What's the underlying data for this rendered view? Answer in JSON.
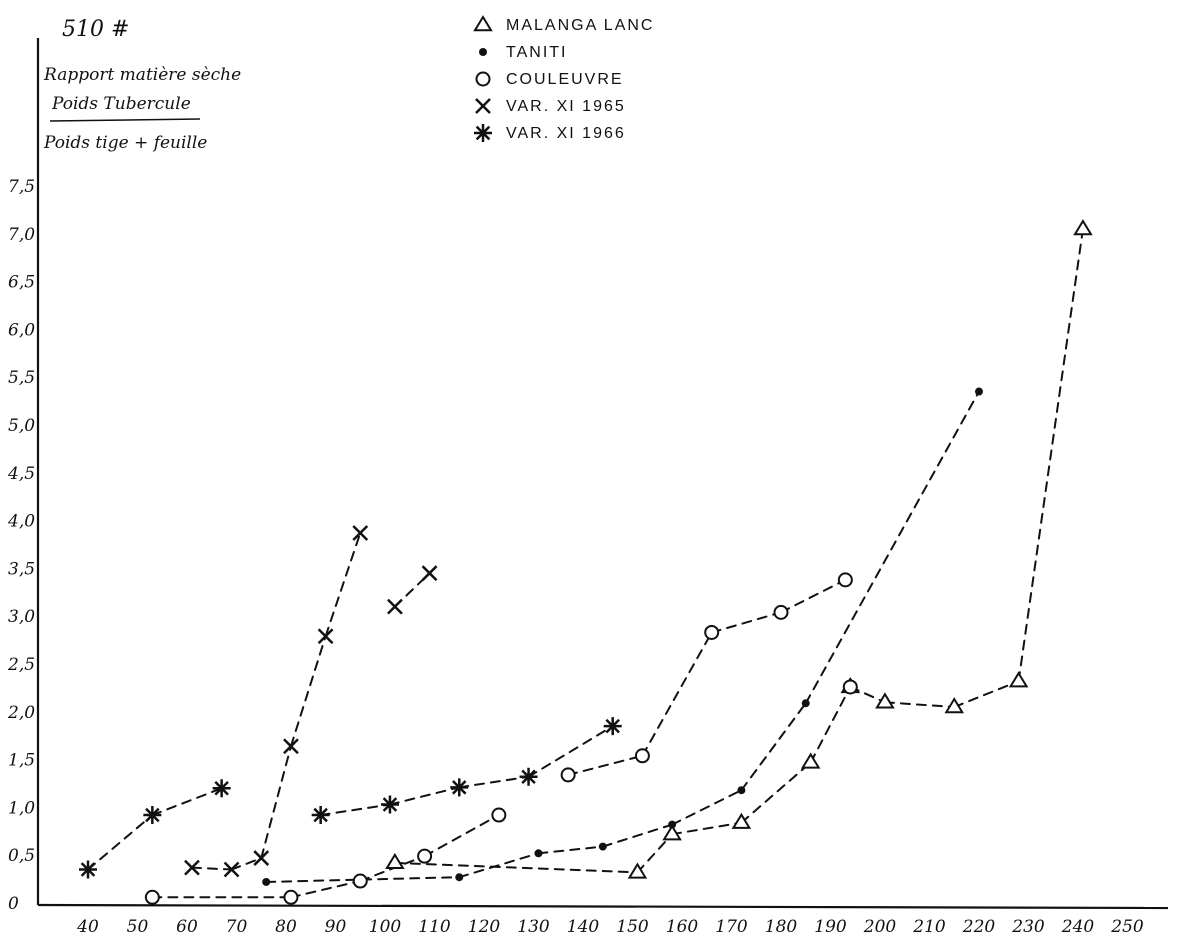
{
  "chart_data": {
    "type": "line",
    "page_mark": "510 #",
    "ylabel_lines": [
      "Rapport matière sèche",
      "Poids Tubercule",
      "Poids tige + feuille"
    ],
    "xlim": [
      35,
      255
    ],
    "ylim": [
      0,
      8.0
    ],
    "grid": false,
    "legend_position": "top-center",
    "x_ticks": [
      "40",
      "50",
      "60",
      "70",
      "80",
      "90",
      "100",
      "110",
      "120",
      "130",
      "140",
      "150",
      "160",
      "170",
      "180",
      "190",
      "200",
      "210",
      "220",
      "230",
      "240",
      "250"
    ],
    "y_ticks": [
      {
        "label": "0",
        "value": 0
      },
      {
        "label": "0,5",
        "value": 0.5
      },
      {
        "label": "1,0",
        "value": 1.0
      },
      {
        "label": "1,5",
        "value": 1.5
      },
      {
        "label": "2,0",
        "value": 2.0
      },
      {
        "label": "2,5",
        "value": 2.5
      },
      {
        "label": "3,0",
        "value": 3.0
      },
      {
        "label": "3,5",
        "value": 3.5
      },
      {
        "label": "4,0",
        "value": 4.0
      },
      {
        "label": "4,5",
        "value": 4.5
      },
      {
        "label": "5,0",
        "value": 5.0
      },
      {
        "label": "5,5",
        "value": 5.5
      },
      {
        "label": "6,0",
        "value": 6.0
      },
      {
        "label": "6,5",
        "value": 6.5
      },
      {
        "label": "7,0",
        "value": 7.0
      },
      {
        "label": "7,5",
        "value": 7.5
      }
    ],
    "series": [
      {
        "name": "MALANGA LANC",
        "marker": "triangle",
        "points": [
          [
            102,
            0.42
          ],
          [
            151,
            0.32
          ],
          [
            158,
            0.72
          ],
          [
            172,
            0.84
          ],
          [
            186,
            1.47
          ],
          [
            194,
            2.26
          ],
          [
            201,
            2.1
          ],
          [
            215,
            2.05
          ],
          [
            228,
            2.32
          ],
          [
            241,
            7.05
          ]
        ]
      },
      {
        "name": "TANITI",
        "marker": "dot",
        "points": [
          [
            76,
            0.22
          ],
          [
            115,
            0.27
          ],
          [
            131,
            0.52
          ],
          [
            144,
            0.59
          ],
          [
            158,
            0.82
          ],
          [
            172,
            1.18
          ],
          [
            185,
            2.09
          ],
          [
            220,
            5.35
          ]
        ]
      },
      {
        "name": "COULEUVRE",
        "marker": "circle",
        "points": [
          [
            53,
            0.06
          ],
          [
            81,
            0.06
          ],
          [
            95,
            0.23
          ],
          [
            108,
            0.49
          ],
          [
            123,
            0.92
          ],
          [
            137,
            1.34
          ],
          [
            152,
            1.54
          ],
          [
            166,
            2.83
          ],
          [
            180,
            3.04
          ],
          [
            193,
            3.38
          ],
          [
            194,
            2.26
          ]
        ]
      },
      {
        "name": "VAR. XI 1965",
        "marker": "x",
        "points": [
          [
            61,
            0.37
          ],
          [
            69,
            0.35
          ],
          [
            75,
            0.47
          ],
          [
            81,
            1.64
          ],
          [
            88,
            2.79
          ],
          [
            95,
            3.87
          ],
          [
            102,
            3.1
          ],
          [
            109,
            3.45
          ]
        ]
      },
      {
        "name": "VAR. XI 1966",
        "marker": "asterisk",
        "points": [
          [
            40,
            0.35
          ],
          [
            53,
            0.92
          ],
          [
            67,
            1.2
          ],
          [
            87,
            0.92
          ],
          [
            101,
            1.03
          ],
          [
            115,
            1.21
          ],
          [
            129,
            1.32
          ],
          [
            146,
            1.85
          ]
        ]
      }
    ],
    "connections": [
      {
        "series": "MALANGA LANC",
        "segments": [
          [
            0,
            1
          ],
          [
            1,
            2
          ],
          [
            2,
            3
          ],
          [
            3,
            4
          ],
          [
            4,
            5
          ],
          [
            5,
            6
          ],
          [
            6,
            7
          ],
          [
            7,
            8
          ],
          [
            8,
            9
          ]
        ]
      },
      {
        "series": "TANITI",
        "segments": [
          [
            0,
            1
          ],
          [
            1,
            2
          ],
          [
            2,
            3
          ],
          [
            3,
            4
          ],
          [
            4,
            5
          ],
          [
            5,
            6
          ],
          [
            6,
            7
          ]
        ]
      },
      {
        "series": "COULEUVRE",
        "segments": [
          [
            0,
            1
          ],
          [
            1,
            2
          ],
          [
            2,
            3
          ],
          [
            3,
            4
          ],
          [
            5,
            6
          ],
          [
            6,
            7
          ],
          [
            7,
            8
          ],
          [
            8,
            9
          ]
        ]
      },
      {
        "series": "VAR. XI 1965",
        "segments": [
          [
            0,
            1
          ],
          [
            1,
            2
          ],
          [
            2,
            3
          ],
          [
            3,
            4
          ],
          [
            4,
            5
          ],
          [
            6,
            7
          ]
        ]
      },
      {
        "series": "VAR. XI 1966",
        "segments": [
          [
            0,
            1
          ],
          [
            1,
            2
          ],
          [
            3,
            4
          ],
          [
            4,
            5
          ],
          [
            5,
            6
          ],
          [
            6,
            7
          ]
        ]
      }
    ],
    "legend": [
      {
        "marker": "triangle",
        "label": "MALANGA   LANC"
      },
      {
        "marker": "dot",
        "label": "TANITI"
      },
      {
        "marker": "circle",
        "label": "COULEUVRE"
      },
      {
        "marker": "x",
        "label": "VAR. XI  1965"
      },
      {
        "marker": "asterisk",
        "label": "VAR. XI  1966"
      }
    ]
  }
}
